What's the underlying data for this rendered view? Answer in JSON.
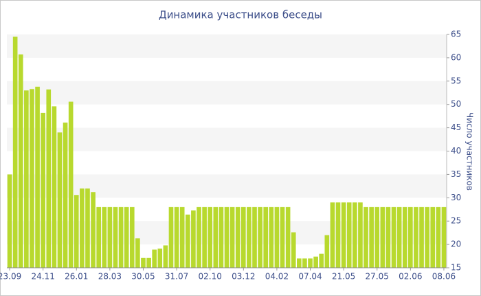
{
  "chart_data": {
    "type": "bar",
    "title": "Динамика участников беседы",
    "y_label": "Число участников",
    "categories": [
      "23.09",
      null,
      null,
      null,
      null,
      null,
      "24.11",
      null,
      null,
      null,
      null,
      null,
      "26.01",
      null,
      null,
      null,
      null,
      null,
      "28.03",
      null,
      null,
      null,
      null,
      null,
      "30.05",
      null,
      null,
      null,
      null,
      null,
      "31.07",
      null,
      null,
      null,
      null,
      null,
      "02.10",
      null,
      null,
      null,
      null,
      null,
      "03.12",
      null,
      null,
      null,
      null,
      null,
      "04.02",
      null,
      null,
      null,
      null,
      null,
      "07.04",
      null,
      null,
      null,
      null,
      null,
      "21.05",
      null,
      null,
      null,
      null,
      null,
      "27.05",
      null,
      null,
      null,
      null,
      null,
      "02.06",
      null,
      null,
      null,
      null,
      null,
      "08.06"
    ],
    "values": [
      35,
      64.5,
      60.7,
      53,
      53.3,
      53.8,
      48.2,
      53.2,
      49.6,
      44,
      46.1,
      50.6,
      30.6,
      32,
      32,
      31.2,
      28,
      28,
      28,
      28,
      28,
      28,
      28,
      21.3,
      17.1,
      17.1,
      18.9,
      19.1,
      19.8,
      28,
      28,
      28,
      26.4,
      27.3,
      28,
      28,
      28,
      28,
      28,
      28,
      28,
      28,
      28,
      28,
      28,
      28,
      28,
      28,
      28,
      28,
      28,
      22.6,
      17,
      17,
      17,
      17.4,
      18,
      22,
      29,
      29,
      29,
      29,
      29,
      29,
      28,
      28,
      28,
      28,
      28,
      28,
      28,
      28,
      28,
      28,
      28,
      28,
      28,
      28,
      28
    ],
    "color": "#b8d92e",
    "ylim": [
      15,
      65
    ],
    "yticks": [
      15,
      20,
      25,
      30,
      35,
      40,
      45,
      50,
      55,
      60,
      65
    ],
    "grid": true
  }
}
